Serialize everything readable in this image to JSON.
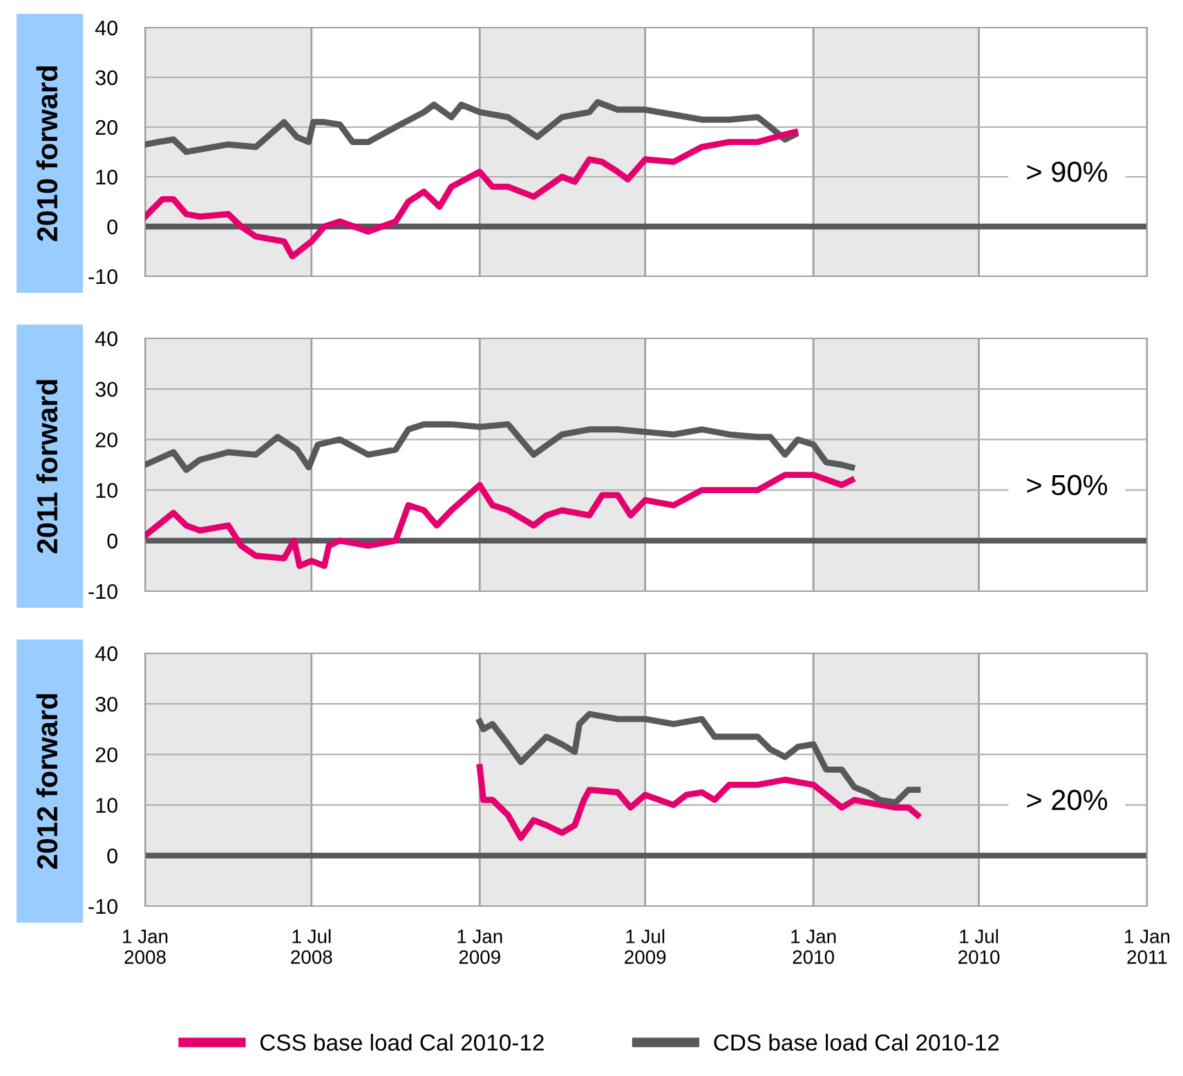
{
  "chart_data": [
    {
      "type": "line",
      "title": "2010 forward",
      "ylim": [
        -10,
        40
      ],
      "yticks": [
        -10,
        0,
        10,
        20,
        30,
        40
      ],
      "xlim": [
        "2008-01-01",
        "2011-01-01"
      ],
      "xticks": [
        {
          "value": "2008-01-01",
          "label": null
        },
        {
          "value": "2008-07-01",
          "label": null
        },
        {
          "value": "2009-01-01",
          "label": null
        },
        {
          "value": "2009-07-01",
          "label": null
        },
        {
          "value": "2010-01-01",
          "label": null
        },
        {
          "value": "2010-07-01",
          "label": null
        },
        {
          "value": "2011-01-01",
          "label": null
        }
      ],
      "tick_labels": "y",
      "grid": true,
      "legend": false,
      "annotations": [
        "> 90%"
      ],
      "bands": [
        {
          "axis": "x",
          "from": "2008-01-01",
          "to": "2008-07-01",
          "color": "#e8e8e8"
        },
        {
          "axis": "x",
          "from": "2009-01-01",
          "to": "2009-07-01",
          "color": "#e8e8e8"
        },
        {
          "axis": "x",
          "from": "2010-01-01",
          "to": "2010-07-01",
          "color": "#e8e8e8"
        }
      ],
      "ref_lines": [
        {
          "axis": "y",
          "value": 0,
          "color": "#58595b"
        }
      ],
      "series": [
        {
          "color": "#58595b",
          "x": [
            "2008-01-01",
            "2008-01-15",
            "2008-02-01",
            "2008-02-15",
            "2008-03-01",
            "2008-04-01",
            "2008-05-01",
            "2008-06-01",
            "2008-06-15",
            "2008-06-28",
            "2008-07-03",
            "2008-07-15",
            "2008-08-01",
            "2008-08-15",
            "2008-09-01",
            "2008-10-01",
            "2008-11-01",
            "2008-11-12",
            "2008-12-01",
            "2008-12-12",
            "2009-01-01",
            "2009-02-01",
            "2009-03-05",
            "2009-04-01",
            "2009-05-01",
            "2009-05-10",
            "2009-06-01",
            "2009-07-01",
            "2009-08-01",
            "2009-09-01",
            "2009-10-01",
            "2009-11-01",
            "2009-11-15",
            "2009-12-01",
            "2009-12-12"
          ],
          "values": [
            16.5,
            17,
            17.5,
            15,
            15.5,
            16.5,
            16,
            21,
            18,
            17,
            21,
            21,
            20.5,
            17,
            17,
            20,
            23,
            24.5,
            22,
            24.5,
            23,
            22,
            18,
            22,
            23,
            25,
            23.5,
            23.5,
            22.5,
            21.5,
            21.5,
            22,
            20,
            17.5,
            18.5
          ]
        },
        {
          "color": "#e5006d",
          "x": [
            "2008-01-01",
            "2008-01-20",
            "2008-02-01",
            "2008-02-15",
            "2008-03-01",
            "2008-04-01",
            "2008-04-15",
            "2008-05-01",
            "2008-06-01",
            "2008-06-10",
            "2008-07-01",
            "2008-07-15",
            "2008-08-01",
            "2008-09-01",
            "2008-10-01",
            "2008-10-15",
            "2008-11-01",
            "2008-11-18",
            "2008-12-01",
            "2009-01-01",
            "2009-01-15",
            "2009-02-01",
            "2009-03-01",
            "2009-04-01",
            "2009-04-15",
            "2009-05-01",
            "2009-05-15",
            "2009-06-01",
            "2009-06-12",
            "2009-07-01",
            "2009-08-01",
            "2009-09-01",
            "2009-10-01",
            "2009-11-01",
            "2009-12-01",
            "2009-12-12"
          ],
          "values": [
            2,
            5.5,
            5.5,
            2.5,
            2,
            2.5,
            0,
            -2,
            -3,
            -6,
            -3,
            0,
            1,
            -1,
            1,
            5,
            7,
            4,
            8,
            11,
            8,
            8,
            6,
            10,
            9,
            13.5,
            13,
            11,
            9.5,
            13.5,
            13,
            16,
            17,
            17,
            18.5,
            19
          ]
        }
      ]
    },
    {
      "type": "line",
      "title": "2011 forward",
      "ylim": [
        -10,
        40
      ],
      "yticks": [
        -10,
        0,
        10,
        20,
        30,
        40
      ],
      "xlim": [
        "2008-01-01",
        "2011-01-01"
      ],
      "xticks": [
        {
          "value": "2008-01-01",
          "label": null
        },
        {
          "value": "2008-07-01",
          "label": null
        },
        {
          "value": "2009-01-01",
          "label": null
        },
        {
          "value": "2009-07-01",
          "label": null
        },
        {
          "value": "2010-01-01",
          "label": null
        },
        {
          "value": "2010-07-01",
          "label": null
        },
        {
          "value": "2011-01-01",
          "label": null
        }
      ],
      "tick_labels": "y",
      "grid": true,
      "legend": false,
      "annotations": [
        "> 50%"
      ],
      "bands": [
        {
          "axis": "x",
          "from": "2008-01-01",
          "to": "2008-07-01",
          "color": "#e8e8e8"
        },
        {
          "axis": "x",
          "from": "2009-01-01",
          "to": "2009-07-01",
          "color": "#e8e8e8"
        },
        {
          "axis": "x",
          "from": "2010-01-01",
          "to": "2010-07-01",
          "color": "#e8e8e8"
        }
      ],
      "ref_lines": [
        {
          "axis": "y",
          "value": 0,
          "color": "#58595b"
        }
      ],
      "series": [
        {
          "color": "#58595b",
          "x": [
            "2008-01-01",
            "2008-02-01",
            "2008-02-15",
            "2008-03-01",
            "2008-04-01",
            "2008-05-01",
            "2008-05-25",
            "2008-06-15",
            "2008-06-28",
            "2008-07-08",
            "2008-08-01",
            "2008-09-01",
            "2008-10-01",
            "2008-10-15",
            "2008-11-01",
            "2008-12-01",
            "2009-01-01",
            "2009-02-01",
            "2009-03-01",
            "2009-04-01",
            "2009-05-01",
            "2009-06-01",
            "2009-07-01",
            "2009-08-01",
            "2009-09-01",
            "2009-10-01",
            "2009-11-01",
            "2009-11-15",
            "2009-12-01",
            "2009-12-15",
            "2010-01-01",
            "2010-01-15",
            "2010-02-01",
            "2010-02-12"
          ],
          "values": [
            15,
            17.5,
            14,
            16,
            17.5,
            17,
            20.5,
            18,
            14.5,
            19,
            20,
            17,
            18,
            22,
            23,
            23,
            22.5,
            23,
            17,
            21,
            22,
            22,
            21.5,
            21,
            22,
            21,
            20.5,
            20.5,
            17,
            20,
            19,
            15.5,
            15,
            14.5
          ]
        },
        {
          "color": "#e5006d",
          "x": [
            "2008-01-01",
            "2008-02-01",
            "2008-02-15",
            "2008-03-01",
            "2008-04-01",
            "2008-04-15",
            "2008-05-01",
            "2008-06-01",
            "2008-06-12",
            "2008-06-18",
            "2008-07-01",
            "2008-07-15",
            "2008-07-20",
            "2008-08-01",
            "2008-09-01",
            "2008-10-01",
            "2008-10-15",
            "2008-11-01",
            "2008-11-15",
            "2008-12-01",
            "2009-01-01",
            "2009-01-15",
            "2009-02-01",
            "2009-03-01",
            "2009-03-15",
            "2009-04-01",
            "2009-05-01",
            "2009-05-15",
            "2009-06-01",
            "2009-06-15",
            "2009-07-01",
            "2009-08-01",
            "2009-09-01",
            "2009-10-01",
            "2009-11-01",
            "2009-12-01",
            "2010-01-01",
            "2010-02-01",
            "2010-02-12"
          ],
          "values": [
            1,
            5.5,
            3,
            2,
            3,
            -1,
            -3,
            -3.5,
            0,
            -5,
            -4,
            -5,
            -1,
            0,
            -1,
            0,
            7,
            6,
            3,
            6,
            11,
            7,
            6,
            3,
            5,
            6,
            5,
            9,
            9,
            5,
            8,
            7,
            10,
            10,
            10,
            13,
            13,
            11,
            12
          ]
        }
      ]
    },
    {
      "type": "line",
      "title": "2012 forward",
      "ylim": [
        -10,
        40
      ],
      "yticks": [
        -10,
        0,
        10,
        20,
        30,
        40
      ],
      "xlim": [
        "2008-01-01",
        "2011-01-01"
      ],
      "xticks": [
        {
          "value": "2008-01-01",
          "label": "1 Jan\n2008"
        },
        {
          "value": "2008-07-01",
          "label": "1 Jul\n2008"
        },
        {
          "value": "2009-01-01",
          "label": "1 Jan\n2009"
        },
        {
          "value": "2009-07-01",
          "label": "1 Jul\n2009"
        },
        {
          "value": "2010-01-01",
          "label": "1 Jan\n2010"
        },
        {
          "value": "2010-07-01",
          "label": "1 Jul\n2010"
        },
        {
          "value": "2011-01-01",
          "label": "1 Jan\n2011"
        }
      ],
      "grid": true,
      "legend": "bottom",
      "annotations": [
        "> 20%"
      ],
      "bands": [
        {
          "axis": "x",
          "from": "2008-01-01",
          "to": "2008-07-01",
          "color": "#e8e8e8"
        },
        {
          "axis": "x",
          "from": "2009-01-01",
          "to": "2009-07-01",
          "color": "#e8e8e8"
        },
        {
          "axis": "x",
          "from": "2010-01-01",
          "to": "2010-07-01",
          "color": "#e8e8e8"
        }
      ],
      "ref_lines": [
        {
          "axis": "y",
          "value": 0,
          "color": "#58595b"
        }
      ],
      "series": [
        {
          "name": "CSS base load Cal 2010-12",
          "color": "#e5006d",
          "x": [
            "2009-01-01",
            "2009-01-05",
            "2009-01-15",
            "2009-02-01",
            "2009-02-15",
            "2009-03-01",
            "2009-03-15",
            "2009-04-01",
            "2009-04-15",
            "2009-04-25",
            "2009-05-01",
            "2009-06-01",
            "2009-06-15",
            "2009-07-01",
            "2009-08-01",
            "2009-08-15",
            "2009-09-01",
            "2009-09-15",
            "2009-10-01",
            "2009-11-01",
            "2009-12-01",
            "2010-01-01",
            "2010-01-15",
            "2010-02-01",
            "2010-02-15",
            "2010-03-01",
            "2010-04-01",
            "2010-04-15",
            "2010-04-25"
          ],
          "values": [
            17.5,
            11,
            11,
            8,
            3.5,
            7,
            6,
            4.5,
            6,
            11,
            13,
            12.5,
            9.5,
            12,
            10,
            12,
            12.5,
            11,
            14,
            14,
            15,
            14,
            12,
            9.5,
            11,
            10.5,
            9.5,
            9.5,
            8
          ]
        },
        {
          "name": "CDS base load Cal 2010-12",
          "color": "#58595b",
          "x": [
            "2009-01-01",
            "2009-01-05",
            "2009-01-15",
            "2009-02-01",
            "2009-02-15",
            "2009-03-01",
            "2009-03-15",
            "2009-04-01",
            "2009-04-15",
            "2009-04-20",
            "2009-05-01",
            "2009-06-01",
            "2009-07-01",
            "2009-08-01",
            "2009-09-01",
            "2009-09-15",
            "2009-10-01",
            "2009-11-01",
            "2009-11-15",
            "2009-12-01",
            "2009-12-15",
            "2010-01-01",
            "2010-01-15",
            "2010-02-01",
            "2010-02-15",
            "2010-03-01",
            "2010-03-15",
            "2010-04-01",
            "2010-04-15",
            "2010-04-25"
          ],
          "values": [
            26.5,
            25,
            26,
            22,
            18.5,
            21,
            23.5,
            22,
            20.5,
            26,
            28,
            27,
            27,
            26,
            27,
            23.5,
            23.5,
            23.5,
            21,
            19.5,
            21.5,
            22,
            17,
            17,
            13.5,
            12.5,
            11,
            10.5,
            13,
            13
          ]
        }
      ]
    }
  ]
}
